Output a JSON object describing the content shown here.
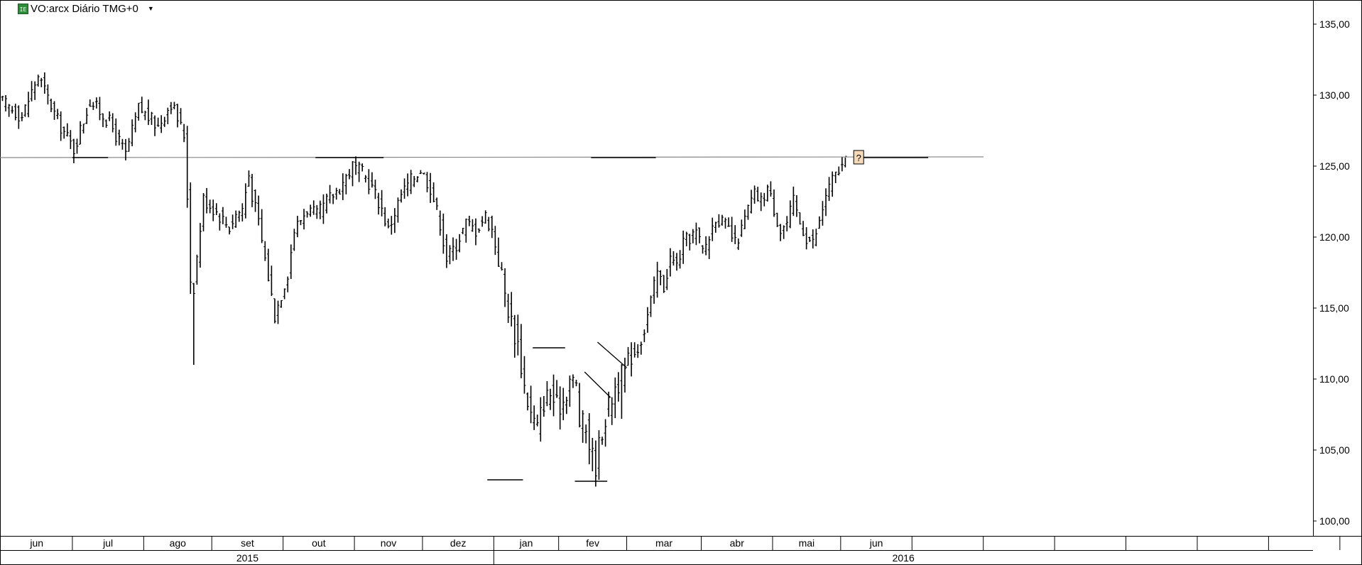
{
  "header": {
    "logo_text": "IE",
    "symbol_label": "VO:arcx Diário TMG+0",
    "dropdown_icon": "caret-down-icon"
  },
  "chart_data": {
    "type": "ohlc",
    "title": "",
    "ylim": [
      99.5,
      136.5
    ],
    "y_ticks": [
      "100,00",
      "105,00",
      "110,00",
      "115,00",
      "120,00",
      "125,00",
      "130,00",
      "135,00"
    ],
    "y_tick_values": [
      100,
      105,
      110,
      115,
      120,
      125,
      130,
      135
    ],
    "months": [
      {
        "label": "jun",
        "start_day": 0,
        "end_day": 22
      },
      {
        "label": "jul",
        "start_day": 22,
        "end_day": 44
      },
      {
        "label": "ago",
        "start_day": 44,
        "end_day": 65
      },
      {
        "label": "set",
        "start_day": 65,
        "end_day": 87
      },
      {
        "label": "out",
        "start_day": 87,
        "end_day": 109
      },
      {
        "label": "nov",
        "start_day": 109,
        "end_day": 130
      },
      {
        "label": "dez",
        "start_day": 130,
        "end_day": 152
      },
      {
        "label": "jan",
        "start_day": 152,
        "end_day": 172
      },
      {
        "label": "fev",
        "start_day": 172,
        "end_day": 193
      },
      {
        "label": "mar",
        "start_day": 193,
        "end_day": 216
      },
      {
        "label": "abr",
        "start_day": 216,
        "end_day": 238
      },
      {
        "label": "mai",
        "start_day": 238,
        "end_day": 259
      },
      {
        "label": "jun",
        "start_day": 259,
        "end_day": 281
      },
      {
        "label": "",
        "start_day": 281,
        "end_day": 303
      },
      {
        "label": "",
        "start_day": 303,
        "end_day": 325
      },
      {
        "label": "",
        "start_day": 325,
        "end_day": 347
      },
      {
        "label": "",
        "start_day": 347,
        "end_day": 369
      },
      {
        "label": "",
        "start_day": 369,
        "end_day": 391
      },
      {
        "label": "",
        "start_day": 391,
        "end_day": 413
      },
      {
        "label": "",
        "start_day": 413,
        "end_day": 418
      }
    ],
    "years": [
      {
        "label": "2015",
        "start_day": 0,
        "end_day": 152
      },
      {
        "label": "2016",
        "start_day": 152,
        "end_day": 418
      }
    ],
    "price_path": [
      [
        0,
        129.5
      ],
      [
        6,
        128.5
      ],
      [
        11,
        131.4
      ],
      [
        17,
        128.2
      ],
      [
        22,
        126.2
      ],
      [
        27,
        129.6
      ],
      [
        33,
        128.1
      ],
      [
        38,
        125.8
      ],
      [
        42,
        129.1
      ],
      [
        48,
        127.8
      ],
      [
        52,
        129.5
      ],
      [
        56,
        127.2
      ],
      [
        57,
        123.0
      ],
      [
        58,
        117.0
      ],
      [
        59,
        116.5
      ],
      [
        62,
        122.7
      ],
      [
        66,
        121.8
      ],
      [
        70,
        120.7
      ],
      [
        72,
        121.6
      ],
      [
        74,
        122.0
      ],
      [
        76,
        124.4
      ],
      [
        77,
        123.0
      ],
      [
        79,
        121.0
      ],
      [
        82,
        117.2
      ],
      [
        84,
        114.5
      ],
      [
        86,
        116.0
      ],
      [
        88,
        117.5
      ],
      [
        90,
        120.5
      ],
      [
        94,
        122.0
      ],
      [
        97,
        121.5
      ],
      [
        100,
        122.5
      ],
      [
        104,
        123.5
      ],
      [
        108,
        125.0
      ],
      [
        111,
        124.5
      ],
      [
        114,
        123.5
      ],
      [
        117,
        122.0
      ],
      [
        119,
        120.5
      ],
      [
        123,
        123.0
      ],
      [
        126,
        124.0
      ],
      [
        129,
        124.8
      ],
      [
        132,
        123.5
      ],
      [
        135,
        121.0
      ],
      [
        137,
        118.5
      ],
      [
        140,
        119.5
      ],
      [
        143,
        121.0
      ],
      [
        146,
        120.5
      ],
      [
        149,
        121.5
      ],
      [
        151,
        120.5
      ],
      [
        153,
        118.5
      ],
      [
        155,
        116.0
      ],
      [
        157,
        114.0
      ],
      [
        159,
        112.5
      ],
      [
        161,
        109.5
      ],
      [
        163,
        107.5
      ],
      [
        165,
        106.5
      ],
      [
        167,
        108.5
      ],
      [
        169,
        109.0
      ],
      [
        171,
        108.0
      ],
      [
        173,
        108.5
      ],
      [
        175,
        110.0
      ],
      [
        177,
        109.5
      ],
      [
        178,
        107.0
      ],
      [
        180,
        106.5
      ],
      [
        182,
        104.5
      ],
      [
        183,
        104.0
      ],
      [
        185,
        106.5
      ],
      [
        187,
        108.0
      ],
      [
        189,
        109.5
      ],
      [
        190,
        109.8
      ],
      [
        192,
        110.5
      ],
      [
        194,
        111.8
      ],
      [
        196,
        112.2
      ],
      [
        198,
        113.5
      ],
      [
        200,
        115.5
      ],
      [
        202,
        117.5
      ],
      [
        204,
        116.5
      ],
      [
        206,
        118.5
      ],
      [
        208,
        118.0
      ],
      [
        210,
        119.5
      ],
      [
        212,
        120.0
      ],
      [
        214,
        120.3
      ],
      [
        216,
        119.0
      ],
      [
        218,
        120.0
      ],
      [
        220,
        121.5
      ],
      [
        222,
        121.0
      ],
      [
        224,
        120.5
      ],
      [
        226,
        119.5
      ],
      [
        228,
        120.5
      ],
      [
        230,
        122.0
      ],
      [
        232,
        123.0
      ],
      [
        234,
        122.5
      ],
      [
        236,
        123.5
      ],
      [
        238,
        122.0
      ],
      [
        240,
        120.5
      ],
      [
        242,
        121.0
      ],
      [
        244,
        122.5
      ],
      [
        246,
        121.0
      ],
      [
        248,
        120.0
      ],
      [
        250,
        119.6
      ],
      [
        252,
        121.0
      ],
      [
        254,
        123.0
      ],
      [
        256,
        124.0
      ],
      [
        258,
        124.7
      ],
      [
        260,
        125.2
      ]
    ],
    "extra_lows": [
      [
        59,
        111.0
      ],
      [
        58,
        116.0
      ],
      [
        182,
        103.5
      ],
      [
        184,
        102.9
      ],
      [
        191,
        107.2
      ]
    ],
    "resistance_level": 125.6,
    "horizontal_segments": [
      {
        "x1": 22,
        "x2": 33,
        "y": 125.6
      },
      {
        "x1": 97,
        "x2": 118,
        "y": 125.6
      },
      {
        "x1": 182,
        "x2": 202,
        "y": 125.6
      },
      {
        "x1": 265,
        "x2": 286,
        "y": 125.6
      },
      {
        "x1": 150,
        "x2": 161,
        "y": 102.9
      },
      {
        "x1": 164,
        "x2": 174,
        "y": 112.2
      },
      {
        "x1": 177,
        "x2": 187,
        "y": 102.8
      }
    ],
    "trendlines": [
      {
        "x1": 180,
        "y1": 110.5,
        "x2": 188,
        "y2": 108.7
      },
      {
        "x1": 184,
        "y1": 112.6,
        "x2": 193,
        "y2": 110.8
      }
    ],
    "alert_marker": {
      "label": "?",
      "day": 265,
      "price": 125.6
    }
  }
}
